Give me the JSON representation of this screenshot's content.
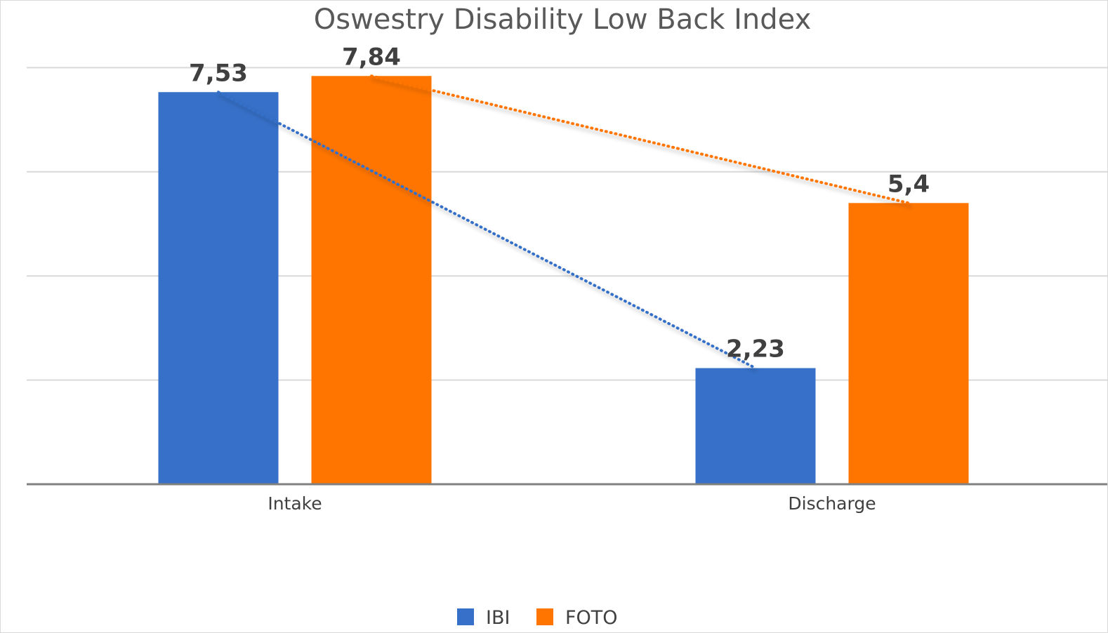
{
  "chart_data": {
    "type": "bar",
    "title": "Oswestry Disability Low Back Index",
    "xlabel": "",
    "ylabel": "",
    "categories": [
      "Intake",
      "Discharge"
    ],
    "series": [
      {
        "name": "IBI",
        "values": [
          7.53,
          2.23
        ],
        "labels": [
          "7,53",
          "2,23"
        ],
        "color": "#3670C8"
      },
      {
        "name": "FOTO",
        "values": [
          7.84,
          5.4
        ],
        "labels": [
          "7,84",
          "5,4"
        ],
        "color": "#FF7500"
      }
    ],
    "ylim": [
      0,
      10
    ],
    "gridlines": [
      0,
      2,
      4,
      6,
      8
    ],
    "y_tick_labels_visible": false,
    "grid": true,
    "trendlines": "dotted line per series connecting Intake to Discharge",
    "legend": "bottom-center"
  }
}
